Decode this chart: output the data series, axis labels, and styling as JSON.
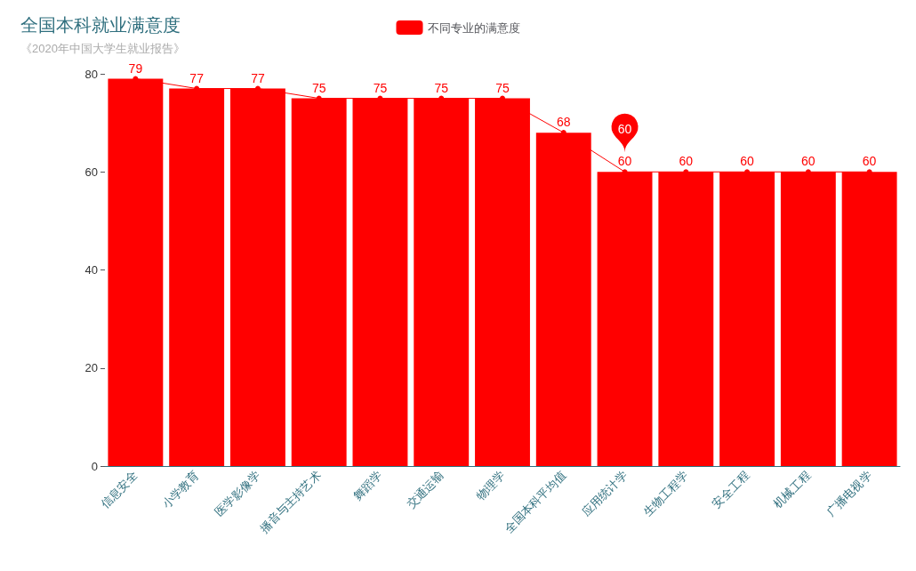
{
  "chart_data": {
    "type": "bar",
    "title": "全国本科就业满意度",
    "subtitle": "《2020年中国大学生就业报告》",
    "categories": [
      "信息安全",
      "小学教育",
      "医学影像学",
      "播音与主持艺术",
      "舞蹈学",
      "交通运输",
      "物理学",
      "全国本科平均值",
      "应用统计学",
      "生物工程学",
      "安全工程",
      "机械工程",
      "广播电视学"
    ],
    "series": [
      {
        "name": "不同专业的满意度",
        "color": "#ff0000",
        "values": [
          79,
          77,
          77,
          75,
          75,
          75,
          75,
          68,
          60,
          60,
          60,
          60,
          60
        ]
      },
      {
        "type": "line",
        "color": "#ff0000",
        "values": [
          79,
          77,
          77,
          75,
          75,
          75,
          75,
          68,
          60,
          60,
          60,
          60,
          60
        ],
        "value_labels": [
          null,
          null,
          null,
          null,
          null,
          null,
          null,
          null,
          null,
          null,
          null,
          null,
          null
        ]
      }
    ],
    "ylim": [
      0,
      80
    ],
    "yticks": [
      0,
      20,
      40,
      60,
      80
    ],
    "grid": false,
    "legend": "top",
    "marker": "circle",
    "line_style": "solid",
    "data_labels": true,
    "annotations": [
      {
        "text": "60",
        "x": "应用统计学",
        "y": 60
      }
    ]
  }
}
